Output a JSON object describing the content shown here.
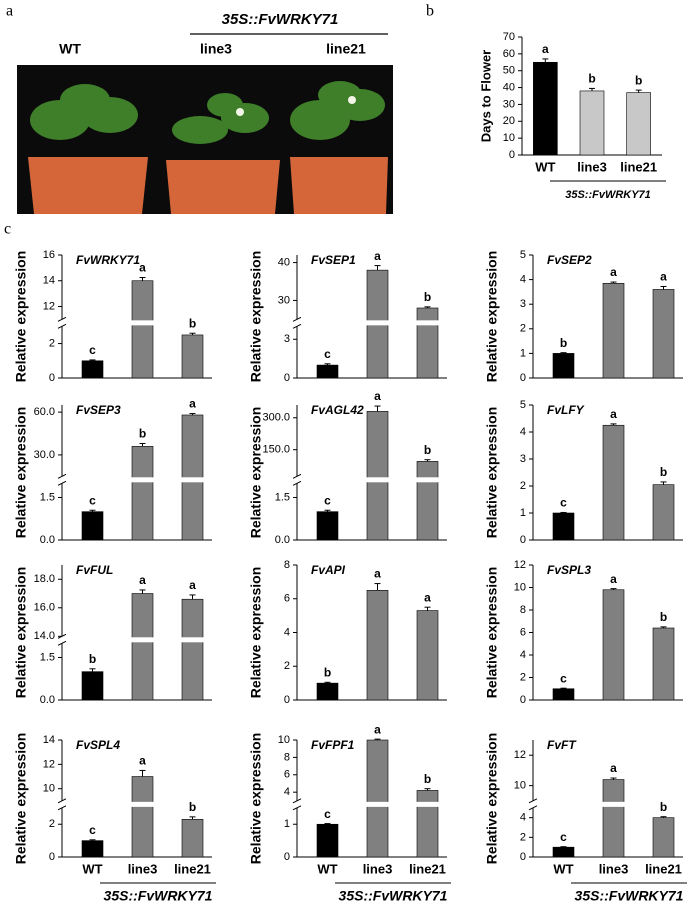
{
  "panel_labels": {
    "a": "a",
    "b": "b",
    "c": "c"
  },
  "photo": {
    "genotype": "35S::FvWRKY71",
    "labels": [
      "WT",
      "line3",
      "line21"
    ]
  },
  "chart_data": [
    {
      "type": "bar",
      "ylabel": "Days to Flower",
      "categories": [
        "WT",
        "line3",
        "line21"
      ],
      "group_label": "35S::FvWRKY71",
      "values": [
        55,
        38,
        37
      ],
      "errors": [
        2,
        1.5,
        1.5
      ],
      "letters": [
        "a",
        "b",
        "b"
      ],
      "colors": [
        "#000000",
        "#c8c8c8",
        "#c8c8c8"
      ],
      "ylim": [
        0,
        70
      ],
      "yticks": [
        0,
        10,
        20,
        30,
        40,
        50,
        60,
        70
      ]
    },
    {
      "type": "bar",
      "title": "FvWRKY71",
      "ylabel": "Relative expression",
      "values": [
        1,
        14,
        2.5
      ],
      "errors": [
        0.05,
        0.25,
        0.1
      ],
      "letters": [
        "c",
        "a",
        "b"
      ],
      "colors": [
        "#000000",
        "#808080",
        "#808080"
      ],
      "ylim": [
        0,
        16
      ],
      "y_break": [
        3,
        11
      ],
      "yticks": [
        0,
        2,
        12,
        14,
        16
      ]
    },
    {
      "type": "bar",
      "title": "FvSEP1",
      "ylabel": "Relative expression",
      "values": [
        1,
        38,
        28
      ],
      "errors": [
        0.1,
        1.2,
        0.3
      ],
      "letters": [
        "c",
        "a",
        "b"
      ],
      "colors": [
        "#000000",
        "#808080",
        "#808080"
      ],
      "ylim": [
        0,
        42
      ],
      "y_break": [
        4,
        25
      ],
      "yticks": [
        0,
        3,
        30,
        40
      ]
    },
    {
      "type": "bar",
      "title": "FvSEP2",
      "ylabel": "Relative expression",
      "values": [
        1,
        3.85,
        3.6
      ],
      "errors": [
        0.03,
        0.05,
        0.12
      ],
      "letters": [
        "b",
        "a",
        "a"
      ],
      "colors": [
        "#000000",
        "#808080",
        "#808080"
      ],
      "ylim": [
        0,
        5
      ],
      "yticks": [
        0,
        1,
        2,
        3,
        4,
        5
      ]
    },
    {
      "type": "bar",
      "title": "FvSEP3",
      "ylabel": "Relative expression",
      "values": [
        1,
        36,
        58
      ],
      "errors": [
        0.05,
        2,
        1
      ],
      "letters": [
        "c",
        "b",
        "a"
      ],
      "colors": [
        "#000000",
        "#808080",
        "#808080"
      ],
      "ylim": [
        0,
        65
      ],
      "y_break": [
        2,
        15
      ],
      "yticks": [
        {
          "value": 0,
          "label": "0.0"
        },
        1.5,
        {
          "value": 30,
          "label": "30.0"
        },
        {
          "value": 60,
          "label": "60.0"
        }
      ]
    },
    {
      "type": "bar",
      "title": "FvAGL42",
      "ylabel": "Relative expression",
      "values": [
        1,
        330,
        95
      ],
      "errors": [
        0.05,
        25,
        8
      ],
      "letters": [
        "c",
        "a",
        "b"
      ],
      "colors": [
        "#000000",
        "#808080",
        "#808080"
      ],
      "ylim": [
        0,
        360
      ],
      "y_break": [
        2,
        25
      ],
      "yticks": [
        {
          "value": 0,
          "label": "0.0"
        },
        1.5,
        {
          "value": 150,
          "label": "150.0"
        },
        {
          "value": 300,
          "label": "300.0"
        }
      ]
    },
    {
      "type": "bar",
      "title": "FvLFY",
      "ylabel": "Relative expression",
      "values": [
        1,
        4.25,
        2.05
      ],
      "errors": [
        0.02,
        0.05,
        0.1
      ],
      "letters": [
        "c",
        "a",
        "b"
      ],
      "colors": [
        "#000000",
        "#808080",
        "#808080"
      ],
      "ylim": [
        0,
        5
      ],
      "yticks": [
        0,
        1,
        2,
        3,
        4,
        5
      ]
    },
    {
      "type": "bar",
      "title": "FvFUL",
      "ylabel": "Relative expression",
      "values": [
        1,
        17,
        16.6
      ],
      "errors": [
        0.1,
        0.25,
        0.3
      ],
      "letters": [
        "b",
        "a",
        "a"
      ],
      "colors": [
        "#000000",
        "#808080",
        "#808080"
      ],
      "ylim": [
        0,
        19
      ],
      "y_break": [
        2,
        14
      ],
      "yticks": [
        {
          "value": 0,
          "label": "0.0"
        },
        1.5,
        {
          "value": 14,
          "label": "14.0"
        },
        {
          "value": 16,
          "label": "16.0"
        },
        {
          "value": 18,
          "label": "18.0"
        }
      ]
    },
    {
      "type": "bar",
      "title": "FvAPI",
      "ylabel": "Relative expression",
      "values": [
        1,
        6.5,
        5.3
      ],
      "errors": [
        0.05,
        0.4,
        0.2
      ],
      "letters": [
        "b",
        "a",
        "a"
      ],
      "colors": [
        "#000000",
        "#808080",
        "#808080"
      ],
      "ylim": [
        0,
        8
      ],
      "yticks": [
        0,
        2,
        4,
        6,
        8
      ]
    },
    {
      "type": "bar",
      "title": "FvSPL3",
      "ylabel": "Relative expression",
      "values": [
        1,
        9.8,
        6.4
      ],
      "errors": [
        0.05,
        0.1,
        0.1
      ],
      "letters": [
        "c",
        "a",
        "b"
      ],
      "colors": [
        "#000000",
        "#808080",
        "#808080"
      ],
      "ylim": [
        0,
        12
      ],
      "yticks": [
        0,
        2,
        4,
        6,
        8,
        10,
        12
      ]
    },
    {
      "type": "bar",
      "title": "FvSPL4",
      "ylabel": "Relative expression",
      "categories": [
        "WT",
        "line3",
        "line21"
      ],
      "group_label": "35S::FvWRKY71",
      "values": [
        1,
        11,
        2.3
      ],
      "errors": [
        0.05,
        0.5,
        0.15
      ],
      "letters": [
        "c",
        "a",
        "b"
      ],
      "colors": [
        "#000000",
        "#808080",
        "#808080"
      ],
      "ylim": [
        0,
        14
      ],
      "y_break": [
        3,
        9
      ],
      "yticks": [
        0,
        2,
        10,
        12,
        14
      ]
    },
    {
      "type": "bar",
      "title": "FvFPF1",
      "ylabel": "Relative expression",
      "categories": [
        "WT",
        "line3",
        "line21"
      ],
      "group_label": "35S::FvWRKY71",
      "values": [
        1,
        10,
        4.2
      ],
      "errors": [
        0.02,
        0.1,
        0.2
      ],
      "letters": [
        "c",
        "a",
        "b"
      ],
      "colors": [
        "#000000",
        "#808080",
        "#808080"
      ],
      "ylim": [
        0,
        10
      ],
      "y_break": [
        1.5,
        3
      ],
      "yticks": [
        0,
        1,
        4,
        6,
        8,
        10
      ]
    },
    {
      "type": "bar",
      "title": "FvFT",
      "ylabel": "Relative expression",
      "categories": [
        "WT",
        "line3",
        "line21"
      ],
      "group_label": "35S::FvWRKY71",
      "values": [
        1,
        10.4,
        4
      ],
      "errors": [
        0.05,
        0.1,
        0.1
      ],
      "letters": [
        "c",
        "a",
        "b"
      ],
      "colors": [
        "#000000",
        "#808080",
        "#808080"
      ],
      "ylim": [
        0,
        13
      ],
      "y_break": [
        5,
        9
      ],
      "yticks": [
        0,
        2,
        4,
        10,
        12
      ]
    }
  ]
}
